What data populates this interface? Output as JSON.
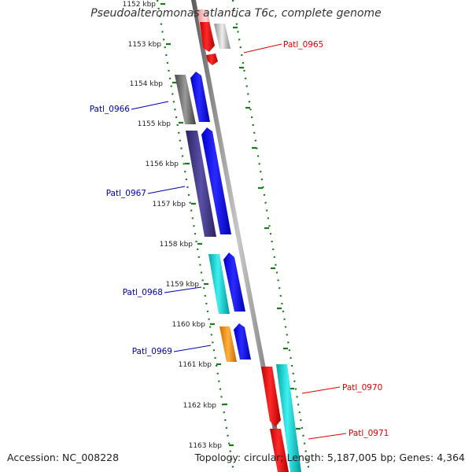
{
  "header": {
    "title": "Pseudoalteromonas atlantica T6c, complete genome"
  },
  "footer": {
    "accession": "Accession: NC_008228",
    "summary": "Topology: circular; Length: 5,187,005 bp; Genes: 4,364"
  },
  "ruler": {
    "ticks": [
      "1152 kbp",
      "1153 kbp",
      "1154 kbp",
      "1155 kbp",
      "1156 kbp",
      "1157 kbp",
      "1158 kbp",
      "1159 kbp",
      "1160 kbp",
      "1161 kbp",
      "1162 kbp",
      "1163 kbp"
    ]
  },
  "genes": [
    {
      "label": "Patl_0965",
      "color": "#dd0000",
      "side": "right"
    },
    {
      "label": "Patl_0966",
      "color": "#0000aa",
      "side": "left"
    },
    {
      "label": "Patl_0967",
      "color": "#0000aa",
      "side": "left"
    },
    {
      "label": "Patl_0968",
      "color": "#0000aa",
      "side": "left"
    },
    {
      "label": "Patl_0969",
      "color": "#0000aa",
      "side": "left"
    },
    {
      "label": "Patl_0970",
      "color": "#dd0000",
      "side": "right"
    },
    {
      "label": "Patl_0971",
      "color": "#dd0000",
      "side": "right"
    }
  ],
  "colors": {
    "forward_strand": "#0000ee",
    "reverse_strand": "#ee0000",
    "dot_line": "#1a7a1a",
    "backbone": "#808080"
  }
}
